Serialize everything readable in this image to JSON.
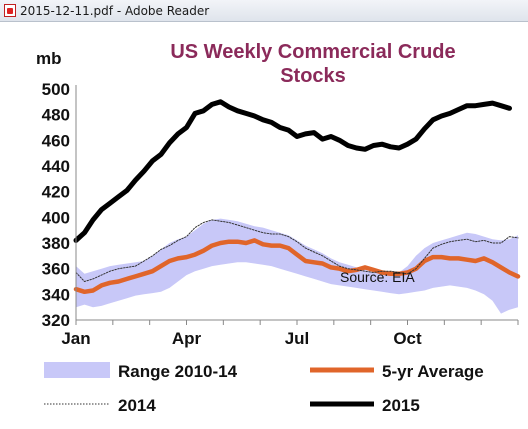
{
  "window": {
    "title": "2015-12-11.pdf - Adobe Reader",
    "icon": "pdf-file-icon"
  },
  "colors": {
    "range": "#c8c8f8",
    "avg": "#e0652a",
    "line2014": "#333333",
    "line2015": "#000000",
    "title": "#8b2a5a"
  },
  "chart_data": {
    "type": "line",
    "title": "US Weekly Commercial Crude",
    "title_line2": "Stocks",
    "ylabel": "mb",
    "ylim": [
      320,
      500
    ],
    "yticks": [
      "500",
      "480",
      "460",
      "440",
      "420",
      "400",
      "380",
      "360",
      "340",
      "320"
    ],
    "xticks": [
      {
        "label": "Jan",
        "week": 0
      },
      {
        "label": "Apr",
        "week": 13
      },
      {
        "label": "Jul",
        "week": 26
      },
      {
        "label": "Oct",
        "week": 39
      }
    ],
    "source": "Source: EIA",
    "weeks": 52,
    "series": [
      {
        "name": "Range 2010-14",
        "kind": "band",
        "low": [
          330,
          332,
          330,
          331,
          333,
          335,
          337,
          339,
          340,
          341,
          342,
          345,
          350,
          355,
          358,
          360,
          362,
          363,
          364,
          365,
          365,
          364,
          363,
          362,
          360,
          358,
          356,
          354,
          352,
          350,
          348,
          347,
          346,
          345,
          344,
          343,
          342,
          341,
          340,
          341,
          342,
          343,
          345,
          346,
          347,
          346,
          345,
          343,
          340,
          335,
          325,
          328,
          330
        ],
        "high": [
          362,
          356,
          358,
          360,
          362,
          363,
          364,
          365,
          366,
          370,
          375,
          380,
          383,
          385,
          390,
          395,
          398,
          399,
          398,
          397,
          395,
          393,
          392,
          390,
          388,
          386,
          382,
          378,
          375,
          372,
          368,
          365,
          363,
          361,
          359,
          357,
          356,
          355,
          357,
          362,
          370,
          376,
          380,
          382,
          384,
          386,
          388,
          387,
          385,
          383,
          382,
          383,
          386
        ]
      },
      {
        "name": "5-yr Average",
        "kind": "line",
        "values": [
          344,
          342,
          343,
          347,
          349,
          350,
          352,
          354,
          356,
          358,
          362,
          366,
          368,
          369,
          371,
          374,
          378,
          380,
          381,
          381,
          380,
          382,
          379,
          378,
          378,
          376,
          371,
          366,
          365,
          364,
          361,
          360,
          358,
          359,
          361,
          359,
          357,
          356,
          356,
          357,
          360,
          366,
          369,
          369,
          368,
          368,
          367,
          366,
          368,
          365,
          361,
          357,
          354
        ]
      },
      {
        "name": "2014",
        "kind": "line",
        "values": [
          357,
          350,
          352,
          355,
          358,
          360,
          361,
          362,
          366,
          370,
          375,
          378,
          382,
          385,
          392,
          396,
          398,
          397,
          396,
          394,
          392,
          390,
          388,
          387,
          387,
          385,
          381,
          376,
          373,
          370,
          366,
          362,
          360,
          359,
          358,
          357,
          358,
          358,
          357,
          356,
          360,
          368,
          376,
          379,
          381,
          382,
          383,
          381,
          382,
          380,
          380,
          385,
          384
        ]
      },
      {
        "name": "2015",
        "kind": "line",
        "values": [
          382,
          388,
          398,
          406,
          411,
          416,
          421,
          429,
          436,
          444,
          449,
          458,
          465,
          470,
          481,
          483,
          488,
          490,
          486,
          483,
          481,
          479,
          476,
          474,
          470,
          468,
          463,
          465,
          466,
          461,
          463,
          460,
          456,
          454,
          453,
          456,
          457,
          455,
          454,
          457,
          461,
          469,
          476,
          479,
          481,
          484,
          487,
          487,
          488,
          489,
          487,
          485
        ]
      }
    ],
    "legend": [
      {
        "name": "Range 2010-14",
        "kind": "band"
      },
      {
        "name": "5-yr Average",
        "kind": "line"
      },
      {
        "name": "2014",
        "kind": "dotted"
      },
      {
        "name": "2015",
        "kind": "line"
      }
    ],
    "grid": false
  }
}
